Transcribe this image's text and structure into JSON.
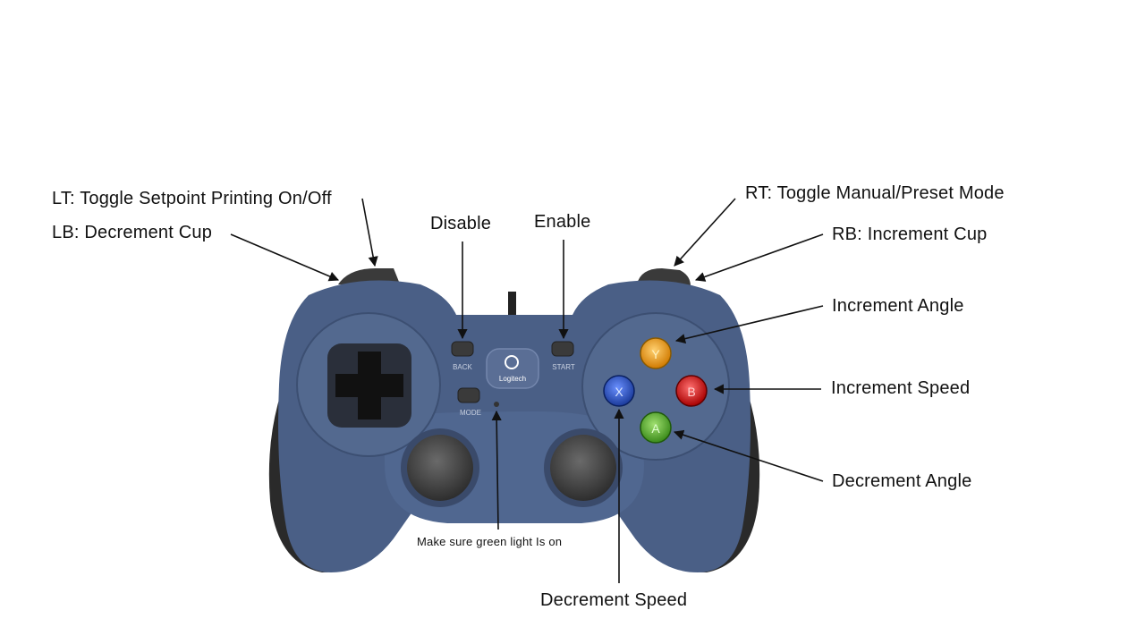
{
  "labels": {
    "lt": "LT: Toggle Setpoint Printing On/Off",
    "lb": "LB: Decrement Cup",
    "disable": "Disable",
    "enable": "Enable",
    "rt": "RT: Toggle Manual/Preset Mode",
    "rb": "RB: Increment Cup",
    "inc_angle": "Increment Angle",
    "inc_speed": "Increment Speed",
    "dec_angle": "Decrement Angle",
    "dec_speed": "Decrement Speed",
    "green_light": "Make sure green light Is on"
  },
  "controller": {
    "brand": "Logitech",
    "back_label": "BACK",
    "start_label": "START",
    "mode_label": "MODE",
    "buttons": {
      "y": "Y",
      "x": "X",
      "b": "B",
      "a": "A"
    }
  },
  "colors": {
    "body": "#4a5f86",
    "grip": "#2b2b2b",
    "y_button": "#f0a020",
    "x_button": "#2a56c8",
    "b_button": "#e02020",
    "a_button": "#5cb030"
  }
}
